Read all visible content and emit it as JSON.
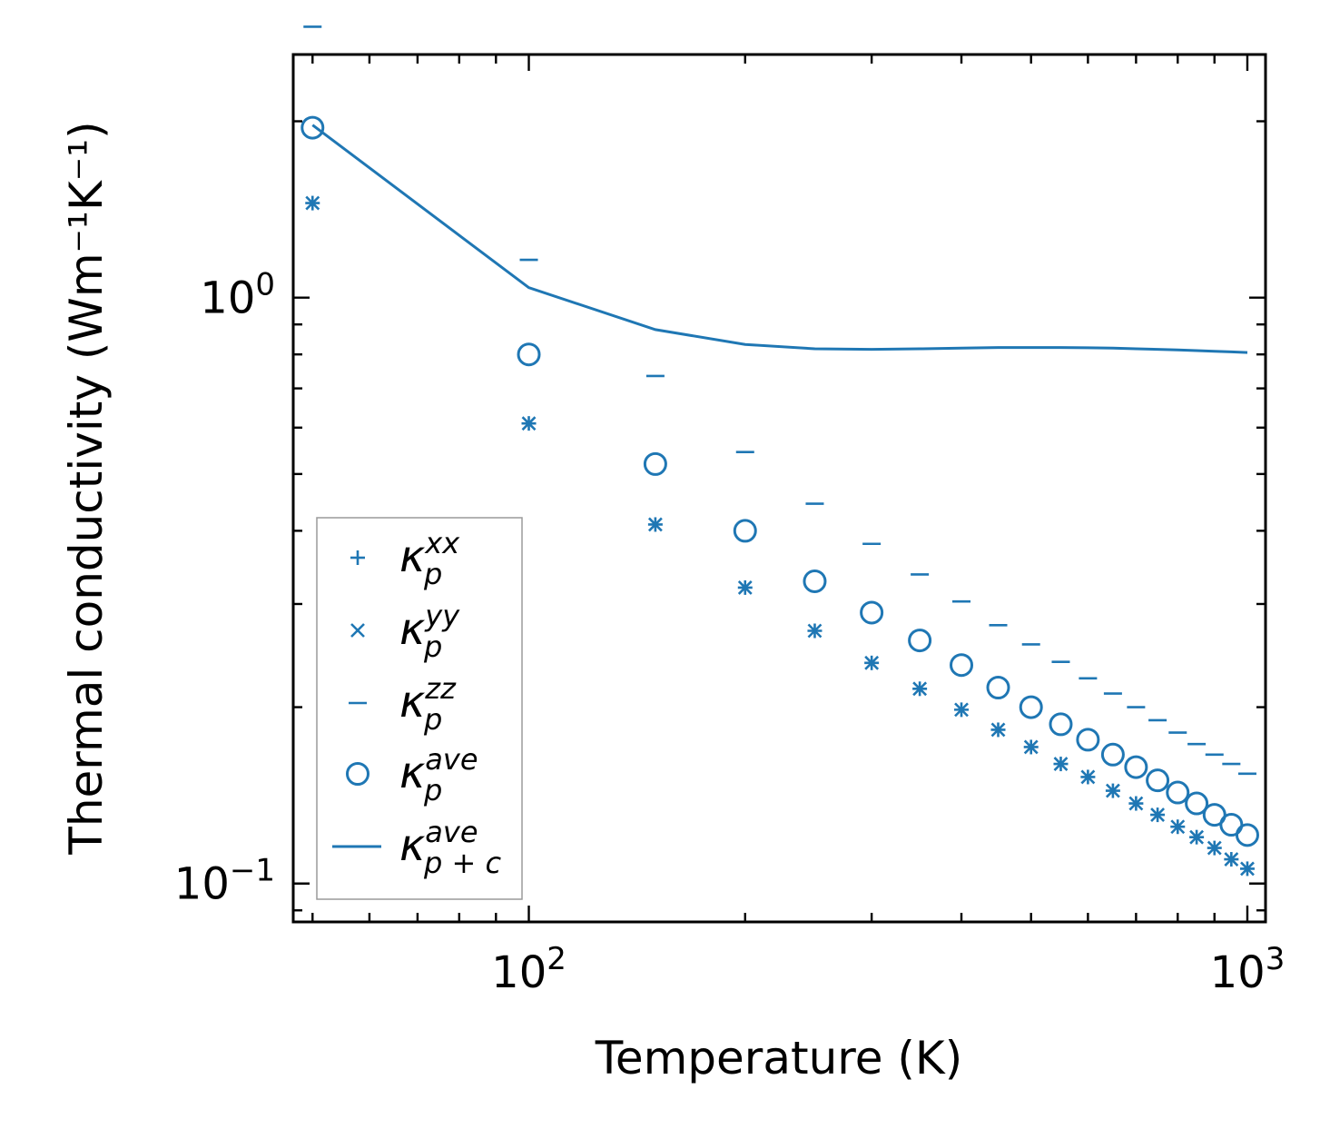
{
  "chart_data": {
    "type": "scatter",
    "title": "",
    "xlabel": "Temperature (K)",
    "ylabel": "Thermal conductivity (Wm⁻¹K⁻¹)",
    "xscale": "log",
    "yscale": "log",
    "xlim": [
      47,
      1060
    ],
    "ylim": [
      0.086,
      2.6
    ],
    "grid": false,
    "legend_position": "lower-left",
    "x": [
      50,
      100,
      150,
      200,
      250,
      300,
      350,
      400,
      450,
      500,
      550,
      600,
      650,
      700,
      750,
      800,
      850,
      900,
      950,
      1000
    ],
    "series": [
      {
        "name": "kappa_p^xx",
        "symbol": "κ",
        "sub": "p",
        "sup": "xx",
        "marker": "plus",
        "values": [
          1.45,
          0.61,
          0.41,
          0.32,
          0.27,
          0.238,
          0.215,
          0.198,
          0.183,
          0.171,
          0.16,
          0.152,
          0.144,
          0.137,
          0.131,
          0.125,
          0.12,
          0.115,
          0.11,
          0.106
        ]
      },
      {
        "name": "kappa_p^yy",
        "symbol": "κ",
        "sub": "p",
        "sup": "yy",
        "marker": "x",
        "values": [
          1.45,
          0.61,
          0.41,
          0.32,
          0.27,
          0.238,
          0.215,
          0.198,
          0.183,
          0.171,
          0.16,
          0.152,
          0.144,
          0.137,
          0.131,
          0.125,
          0.12,
          0.115,
          0.11,
          0.106
        ]
      },
      {
        "name": "kappa_p^zz",
        "symbol": "κ",
        "sub": "p",
        "sup": "zz",
        "marker": "hline",
        "values": [
          2.9,
          1.16,
          0.735,
          0.545,
          0.445,
          0.38,
          0.337,
          0.303,
          0.276,
          0.256,
          0.239,
          0.224,
          0.211,
          0.2,
          0.19,
          0.181,
          0.173,
          0.166,
          0.16,
          0.154
        ]
      },
      {
        "name": "kappa_p^ave",
        "symbol": "κ",
        "sub": "p",
        "sup": "ave",
        "marker": "circle",
        "values": [
          1.95,
          0.8,
          0.52,
          0.4,
          0.328,
          0.29,
          0.26,
          0.236,
          0.216,
          0.2,
          0.187,
          0.176,
          0.166,
          0.158,
          0.15,
          0.143,
          0.137,
          0.131,
          0.126,
          0.121
        ]
      },
      {
        "name": "kappa_p+c^ave",
        "symbol": "κ",
        "sub": "p + c",
        "sup": "ave",
        "marker": "line",
        "values": [
          1.97,
          1.04,
          0.882,
          0.832,
          0.818,
          0.816,
          0.818,
          0.82,
          0.822,
          0.822,
          0.822,
          0.821,
          0.82,
          0.818,
          0.816,
          0.814,
          0.812,
          0.81,
          0.808,
          0.806
        ]
      }
    ],
    "x_major_ticks": [
      {
        "value": 100,
        "base": "10",
        "exp": "2"
      },
      {
        "value": 1000,
        "base": "10",
        "exp": "3"
      }
    ],
    "y_major_ticks": [
      {
        "value": 0.1,
        "base": "10",
        "exp": "−1"
      },
      {
        "value": 1,
        "base": "10",
        "exp": "0"
      }
    ],
    "color": "#1f77b4"
  }
}
